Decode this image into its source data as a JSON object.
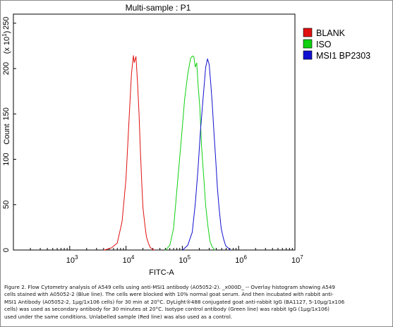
{
  "chart_data": {
    "type": "line",
    "title": "Multi-sample : P1",
    "xlabel": "FITC-A",
    "ylabel": "Count",
    "y_multiplier_label": "(x 10",
    "y_multiplier_exponent": "1",
    "x_scale": "log",
    "xlim": [
      100,
      10000000
    ],
    "ylim": [
      0,
      260
    ],
    "x_ticks": [
      {
        "value": 1000,
        "base": "10",
        "exp": "3"
      },
      {
        "value": 10000,
        "base": "10",
        "exp": "4"
      },
      {
        "value": 100000,
        "base": "10",
        "exp": "5"
      },
      {
        "value": 1000000,
        "base": "10",
        "exp": "6"
      },
      {
        "value": 10000000,
        "base": "10",
        "exp": "7"
      }
    ],
    "y_ticks": [
      0,
      50,
      100,
      150,
      200,
      250
    ],
    "legend_position": "right",
    "series": [
      {
        "name": "BLANK",
        "color": "#e01010",
        "x": [
          4000,
          5500,
          7000,
          8500,
          10000,
          11500,
          12500,
          13500,
          14000,
          15000,
          16000,
          17000,
          18000,
          19000,
          20000,
          21500,
          23000,
          25000,
          27000,
          29000,
          32000
        ],
        "y": [
          0,
          2,
          8,
          30,
          80,
          150,
          195,
          213,
          208,
          212,
          186,
          150,
          110,
          75,
          48,
          28,
          15,
          7,
          3,
          1,
          0
        ]
      },
      {
        "name": "ISO",
        "color": "#10d010",
        "x": [
          50000,
          60000,
          70000,
          80000,
          95000,
          110000,
          125000,
          140000,
          150000,
          160000,
          170000,
          180000,
          190000,
          205000,
          220000,
          240000,
          260000,
          285000,
          310000,
          340000,
          380000
        ],
        "y": [
          0,
          5,
          25,
          65,
          120,
          165,
          195,
          210,
          215,
          212,
          203,
          205,
          185,
          155,
          115,
          80,
          50,
          25,
          10,
          3,
          0
        ]
      },
      {
        "name": "MSI1 BP2303",
        "color": "#1010d0",
        "x": [
          100000,
          125000,
          150000,
          170000,
          190000,
          210000,
          235000,
          260000,
          280000,
          300000,
          320000,
          340000,
          365000,
          390000,
          420000,
          450000,
          490000,
          540000,
          590000,
          650000,
          720000
        ],
        "y": [
          0,
          5,
          20,
          50,
          90,
          130,
          170,
          200,
          212,
          203,
          185,
          160,
          130,
          100,
          70,
          45,
          25,
          12,
          5,
          2,
          0
        ]
      }
    ]
  },
  "caption_lines": [
    "Figure 2. Flow Cytometry analysis of A549 cells using anti-MSI1 antibody (A05052-2). _x000D_ -- Overlay histogram showing A549",
    "cells stained with A05052-2 (Blue line). The cells were blocked with 10% normal goat serum. And then incubated with rabbit anti-",
    "MSI1 Antibody (A05052-2, 1µg/1x106 cells) for 30 min at 20°C. DyLight®488 conjugated goat anti-rabbit IgG (BA1127, 5-10µg/1x106",
    "cells) was used as secondary antibody for 30 minutes at 20°C. Isotype control antibody (Green line) was rabbit IgG (1µg/1x106)",
    "used under the same conditions. Unlabelled sample (Red line) was also used as a control."
  ]
}
